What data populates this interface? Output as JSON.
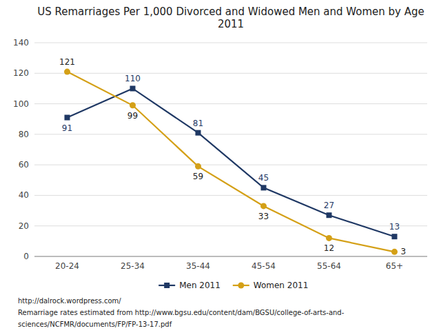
{
  "chart_data": {
    "type": "line",
    "title": "US Remarriages Per 1,000 Divorced and Widowed Men and Women by Age\n2011",
    "categories": [
      "20-24",
      "25-34",
      "35-44",
      "45-54",
      "55-64",
      "65+"
    ],
    "series": [
      {
        "name": "Men 2011",
        "color": "#1F3864",
        "marker": "square",
        "values": [
          91,
          110,
          81,
          45,
          27,
          13
        ]
      },
      {
        "name": "Women 2011",
        "color": "#D4A017",
        "marker": "circle",
        "values": [
          121,
          99,
          59,
          33,
          12,
          3
        ]
      }
    ],
    "ylim": [
      0,
      140
    ],
    "yticks": [
      0,
      20,
      40,
      60,
      80,
      100,
      120,
      140
    ],
    "grid": true,
    "legend": "bottom",
    "data_labels": true,
    "annotations": [
      "http://dalrock.wordpress.com/",
      "Remarriage rates estimated from http://www.bgsu.edu/content/dam/BGSU/college-of-arts-and-",
      "sciences/NCFMR/documents/FP/FP-13-17.pdf"
    ]
  }
}
